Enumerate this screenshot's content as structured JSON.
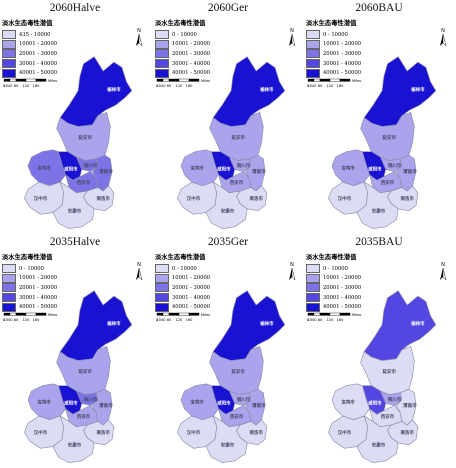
{
  "legend_title": "淡水生态毒性潜值",
  "panels": [
    {
      "title": "2060Halve",
      "legend": [
        "435 - 10000",
        "10001 - 20000",
        "20001 - 30000",
        "30001 - 40000",
        "40001 - 50000"
      ]
    },
    {
      "title": "2060Ger",
      "legend": [
        "0 - 10000",
        "10001 - 20000",
        "20001 - 30000",
        "30001 - 40000",
        "40001 - 50000"
      ]
    },
    {
      "title": "2060BAU",
      "legend": [
        "0 - 10000",
        "10001 - 20000",
        "20001 - 30000",
        "30001 - 40000",
        "40001 - 50000"
      ]
    },
    {
      "title": "2035Halve",
      "legend": [
        "0 - 10000",
        "10001 - 20000",
        "20001 - 30000",
        "30001 - 40000",
        "40001 - 50000"
      ]
    },
    {
      "title": "2035Ger",
      "legend": [
        "0 - 10000",
        "10001 - 20000",
        "20001 - 30000",
        "30001 - 40000",
        "40001 - 50000"
      ]
    },
    {
      "title": "2035BAU",
      "legend": [
        "0 - 10000",
        "10001 - 20000",
        "20001 - 30000",
        "30001 - 40000",
        "40001 - 50000"
      ]
    }
  ],
  "class_colors": [
    "#dcdcf5",
    "#a9a4ec",
    "#7c74e6",
    "#5446e0",
    "#1a12d2"
  ],
  "scale_ticks": [
    "0",
    "2040",
    "80",
    "120",
    "160"
  ],
  "scale_unit": "Miles",
  "north_label": "N",
  "city_labels": {
    "yulin": "榆林市",
    "yanan": "延安市",
    "tongchuan": "铜川市",
    "baoji": "宝鸡市",
    "xianyang": "咸阳市",
    "xian": "西安市",
    "weinan": "渭南市",
    "hanzhong": "汉中市",
    "ankang": "安康市",
    "shangluo": "商洛市"
  },
  "region_classes": [
    {
      "yulin": 4,
      "yanan": 1,
      "tongchuan": 2,
      "baoji": 2,
      "xianyang": 4,
      "xian": 2,
      "weinan": 2,
      "hanzhong": 0,
      "ankang": 0,
      "shangluo": 0
    },
    {
      "yulin": 4,
      "yanan": 1,
      "tongchuan": 1,
      "baoji": 1,
      "xianyang": 4,
      "xian": 1,
      "weinan": 1,
      "hanzhong": 0,
      "ankang": 0,
      "shangluo": 0
    },
    {
      "yulin": 4,
      "yanan": 1,
      "tongchuan": 1,
      "baoji": 1,
      "xianyang": 4,
      "xian": 1,
      "weinan": 1,
      "hanzhong": 0,
      "ankang": 0,
      "shangluo": 0
    },
    {
      "yulin": 4,
      "yanan": 1,
      "tongchuan": 2,
      "baoji": 1,
      "xianyang": 4,
      "xian": 1,
      "weinan": 1,
      "hanzhong": 0,
      "ankang": 0,
      "shangluo": 0
    },
    {
      "yulin": 4,
      "yanan": 1,
      "tongchuan": 1,
      "baoji": 1,
      "xianyang": 4,
      "xian": 1,
      "weinan": 1,
      "hanzhong": 0,
      "ankang": 0,
      "shangluo": 0
    },
    {
      "yulin": 3,
      "yanan": 0,
      "tongchuan": 1,
      "baoji": 0,
      "xianyang": 3,
      "xian": 0,
      "weinan": 0,
      "hanzhong": 0,
      "ankang": 0,
      "shangluo": 0
    }
  ]
}
